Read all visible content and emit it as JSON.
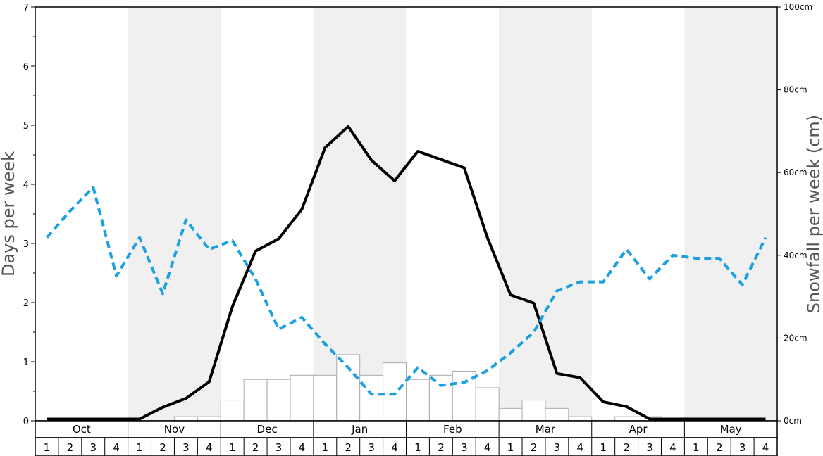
{
  "chart_data": {
    "type": "bar",
    "ylabel_left": "Days per week",
    "ylabel_right": "Snowfall per week (cm)",
    "y_left": {
      "range": [
        0,
        7
      ],
      "ticks": [
        "0",
        "1",
        "2",
        "3",
        "4",
        "5",
        "6",
        "7"
      ]
    },
    "y_right": {
      "range": [
        0,
        100
      ],
      "ticks": [
        "0cm",
        "20cm",
        "40cm",
        "60cm",
        "80cm",
        "100cm"
      ]
    },
    "months": [
      "Oct",
      "Nov",
      "Dec",
      "Jan",
      "Feb",
      "Mar",
      "Apr",
      "May"
    ],
    "weeks": [
      "1",
      "2",
      "3",
      "4"
    ],
    "shaded_months": [
      "Nov",
      "Jan",
      "Mar",
      "May"
    ],
    "colors": {
      "solid_line": "#000000",
      "dashed_line": "#1ba1e2",
      "bar_fill": "#ffffff",
      "bar_stroke": "#aaaaaa",
      "band": "#f0f0f0"
    },
    "series": [
      {
        "type": "line",
        "style": "solid",
        "axis": "left",
        "values": [
          0.03,
          0.03,
          0.03,
          0.03,
          0.03,
          0.23,
          0.38,
          0.66,
          1.93,
          2.87,
          3.08,
          3.58,
          4.62,
          4.98,
          4.41,
          4.06,
          4.56,
          4.42,
          4.28,
          3.1,
          2.13,
          1.99,
          0.8,
          0.73,
          0.32,
          0.24,
          0.03,
          0.03,
          0.03,
          0.03,
          0.03,
          0.03
        ]
      },
      {
        "type": "line",
        "style": "dashed",
        "axis": "left",
        "values": [
          3.1,
          3.55,
          3.95,
          2.45,
          3.1,
          2.15,
          3.4,
          2.9,
          3.05,
          2.4,
          1.55,
          1.75,
          1.3,
          0.9,
          0.45,
          0.45,
          0.9,
          0.6,
          0.65,
          0.85,
          1.15,
          1.5,
          2.2,
          2.35,
          2.35,
          2.9,
          2.4,
          2.8,
          2.75,
          2.75,
          2.3,
          3.1
        ]
      },
      {
        "type": "bar",
        "axis": "left",
        "values": [
          0,
          0,
          0,
          0,
          0,
          0,
          0.07,
          0.07,
          0.35,
          0.7,
          0.7,
          0.77,
          0.77,
          1.12,
          0.77,
          0.98,
          0.7,
          0.77,
          0.84,
          0.56,
          0.21,
          0.35,
          0.21,
          0.07,
          0,
          0.07,
          0.07,
          0,
          0,
          0,
          0,
          0
        ]
      }
    ]
  }
}
